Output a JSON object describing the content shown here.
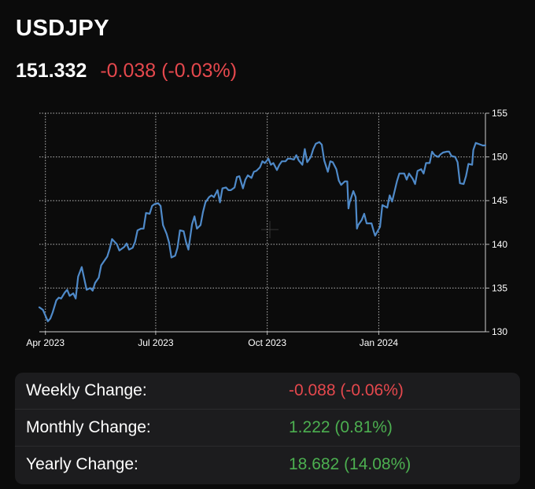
{
  "header": {
    "symbol": "USDJPY",
    "price": "151.332",
    "change": "-0.038 (-0.03%)"
  },
  "colors": {
    "background": "#0b0b0b",
    "line": "#4f8ac9",
    "negative": "#e5484d",
    "positive": "#4caf50",
    "panel": "#1c1c1e"
  },
  "chart_data": {
    "type": "line",
    "title": "",
    "xlabel": "",
    "ylabel": "",
    "ylim": [
      130,
      155
    ],
    "yticks": [
      130,
      135,
      140,
      145,
      150,
      155
    ],
    "xlim": [
      "2023-03-27",
      "2024-03-29"
    ],
    "xticks": [
      {
        "date": "2023-04-01",
        "label": "Apr 2023"
      },
      {
        "date": "2023-07-01",
        "label": "Jul 2023"
      },
      {
        "date": "2023-10-01",
        "label": "Oct 2023"
      },
      {
        "date": "2024-01-01",
        "label": "Jan 2024"
      }
    ],
    "grid": true,
    "y_axis_position": "right",
    "series": [
      {
        "name": "",
        "points": [
          [
            "2023-03-27",
            132.8
          ],
          [
            "2023-03-30",
            132.5
          ],
          [
            "2023-04-03",
            131.2
          ],
          [
            "2023-04-05",
            131.5
          ],
          [
            "2023-04-07",
            132.2
          ],
          [
            "2023-04-10",
            133.6
          ],
          [
            "2023-04-12",
            133.9
          ],
          [
            "2023-04-14",
            133.8
          ],
          [
            "2023-04-17",
            134.5
          ],
          [
            "2023-04-19",
            134.8
          ],
          [
            "2023-04-21",
            134.1
          ],
          [
            "2023-04-24",
            134.4
          ],
          [
            "2023-04-26",
            133.8
          ],
          [
            "2023-04-28",
            136.3
          ],
          [
            "2023-05-01",
            137.4
          ],
          [
            "2023-05-03",
            136.1
          ],
          [
            "2023-05-05",
            134.8
          ],
          [
            "2023-05-08",
            135.0
          ],
          [
            "2023-05-10",
            134.7
          ],
          [
            "2023-05-12",
            135.6
          ],
          [
            "2023-05-15",
            136.2
          ],
          [
            "2023-05-17",
            137.6
          ],
          [
            "2023-05-19",
            138.0
          ],
          [
            "2023-05-22",
            138.6
          ],
          [
            "2023-05-24",
            139.5
          ],
          [
            "2023-05-26",
            140.6
          ],
          [
            "2023-05-30",
            140.0
          ],
          [
            "2023-06-01",
            139.3
          ],
          [
            "2023-06-05",
            139.7
          ],
          [
            "2023-06-07",
            140.1
          ],
          [
            "2023-06-09",
            139.4
          ],
          [
            "2023-06-12",
            139.6
          ],
          [
            "2023-06-14",
            140.3
          ],
          [
            "2023-06-16",
            141.6
          ],
          [
            "2023-06-19",
            141.8
          ],
          [
            "2023-06-21",
            141.8
          ],
          [
            "2023-06-23",
            143.6
          ],
          [
            "2023-06-26",
            143.5
          ],
          [
            "2023-06-28",
            144.4
          ],
          [
            "2023-06-30",
            144.6
          ],
          [
            "2023-07-03",
            144.7
          ],
          [
            "2023-07-05",
            144.4
          ],
          [
            "2023-07-07",
            142.2
          ],
          [
            "2023-07-10",
            141.2
          ],
          [
            "2023-07-12",
            140.2
          ],
          [
            "2023-07-14",
            138.5
          ],
          [
            "2023-07-17",
            138.7
          ],
          [
            "2023-07-19",
            139.6
          ],
          [
            "2023-07-21",
            141.6
          ],
          [
            "2023-07-24",
            141.5
          ],
          [
            "2023-07-26",
            140.3
          ],
          [
            "2023-07-28",
            139.4
          ],
          [
            "2023-07-31",
            142.3
          ],
          [
            "2023-08-02",
            143.2
          ],
          [
            "2023-08-04",
            141.8
          ],
          [
            "2023-08-07",
            142.2
          ],
          [
            "2023-08-09",
            143.7
          ],
          [
            "2023-08-11",
            144.8
          ],
          [
            "2023-08-14",
            145.4
          ],
          [
            "2023-08-16",
            145.6
          ],
          [
            "2023-08-18",
            145.4
          ],
          [
            "2023-08-21",
            146.2
          ],
          [
            "2023-08-23",
            144.8
          ],
          [
            "2023-08-25",
            146.4
          ],
          [
            "2023-08-28",
            146.5
          ],
          [
            "2023-08-30",
            146.2
          ],
          [
            "2023-09-01",
            146.2
          ],
          [
            "2023-09-04",
            146.5
          ],
          [
            "2023-09-06",
            147.7
          ],
          [
            "2023-09-08",
            147.8
          ],
          [
            "2023-09-11",
            146.4
          ],
          [
            "2023-09-13",
            147.4
          ],
          [
            "2023-09-15",
            147.9
          ],
          [
            "2023-09-18",
            147.6
          ],
          [
            "2023-09-20",
            148.3
          ],
          [
            "2023-09-22",
            148.4
          ],
          [
            "2023-09-25",
            148.8
          ],
          [
            "2023-09-27",
            149.5
          ],
          [
            "2023-09-29",
            149.3
          ],
          [
            "2023-10-02",
            149.8
          ],
          [
            "2023-10-04",
            149.1
          ],
          [
            "2023-10-06",
            149.3
          ],
          [
            "2023-10-09",
            148.5
          ],
          [
            "2023-10-11",
            149.1
          ],
          [
            "2023-10-13",
            149.5
          ],
          [
            "2023-10-16",
            149.5
          ],
          [
            "2023-10-18",
            149.8
          ],
          [
            "2023-10-20",
            149.8
          ],
          [
            "2023-10-23",
            149.7
          ],
          [
            "2023-10-25",
            150.2
          ],
          [
            "2023-10-27",
            149.6
          ],
          [
            "2023-10-30",
            149.1
          ],
          [
            "2023-11-01",
            150.9
          ],
          [
            "2023-11-03",
            149.4
          ],
          [
            "2023-11-06",
            150.0
          ],
          [
            "2023-11-08",
            150.9
          ],
          [
            "2023-11-10",
            151.5
          ],
          [
            "2023-11-13",
            151.7
          ],
          [
            "2023-11-15",
            151.4
          ],
          [
            "2023-11-17",
            149.6
          ],
          [
            "2023-11-20",
            148.3
          ],
          [
            "2023-11-22",
            149.5
          ],
          [
            "2023-11-24",
            149.4
          ],
          [
            "2023-11-27",
            148.6
          ],
          [
            "2023-11-29",
            147.3
          ],
          [
            "2023-12-01",
            146.8
          ],
          [
            "2023-12-04",
            147.2
          ],
          [
            "2023-12-06",
            147.2
          ],
          [
            "2023-12-07",
            144.1
          ],
          [
            "2023-12-08",
            144.8
          ],
          [
            "2023-12-11",
            146.1
          ],
          [
            "2023-12-13",
            145.4
          ],
          [
            "2023-12-14",
            141.8
          ],
          [
            "2023-12-15",
            142.2
          ],
          [
            "2023-12-18",
            142.8
          ],
          [
            "2023-12-20",
            143.5
          ],
          [
            "2023-12-22",
            142.4
          ],
          [
            "2023-12-26",
            142.4
          ],
          [
            "2023-12-28",
            141.4
          ],
          [
            "2023-12-29",
            141.0
          ],
          [
            "2024-01-02",
            142.0
          ],
          [
            "2024-01-04",
            144.5
          ],
          [
            "2024-01-08",
            144.2
          ],
          [
            "2024-01-10",
            145.6
          ],
          [
            "2024-01-12",
            144.9
          ],
          [
            "2024-01-16",
            147.2
          ],
          [
            "2024-01-18",
            148.1
          ],
          [
            "2024-01-22",
            148.1
          ],
          [
            "2024-01-24",
            147.4
          ],
          [
            "2024-01-26",
            148.1
          ],
          [
            "2024-01-29",
            147.5
          ],
          [
            "2024-01-31",
            146.9
          ],
          [
            "2024-02-02",
            148.4
          ],
          [
            "2024-02-05",
            148.6
          ],
          [
            "2024-02-07",
            148.1
          ],
          [
            "2024-02-09",
            149.3
          ],
          [
            "2024-02-12",
            149.3
          ],
          [
            "2024-02-14",
            150.6
          ],
          [
            "2024-02-16",
            150.2
          ],
          [
            "2024-02-19",
            150.0
          ],
          [
            "2024-02-21",
            150.3
          ],
          [
            "2024-02-23",
            150.5
          ],
          [
            "2024-02-26",
            150.6
          ],
          [
            "2024-02-28",
            150.6
          ],
          [
            "2024-03-01",
            150.1
          ],
          [
            "2024-03-04",
            150.0
          ],
          [
            "2024-03-06",
            149.4
          ],
          [
            "2024-03-08",
            147.0
          ],
          [
            "2024-03-11",
            146.9
          ],
          [
            "2024-03-13",
            147.8
          ],
          [
            "2024-03-15",
            149.2
          ],
          [
            "2024-03-18",
            149.1
          ],
          [
            "2024-03-19",
            150.8
          ],
          [
            "2024-03-21",
            151.6
          ],
          [
            "2024-03-25",
            151.4
          ],
          [
            "2024-03-27",
            151.3
          ],
          [
            "2024-03-29",
            151.33
          ]
        ]
      }
    ]
  },
  "stats": [
    {
      "label": "Weekly Change:",
      "value": "-0.088 (-0.06%)",
      "direction": "negative"
    },
    {
      "label": "Monthly Change:",
      "value": "1.222 (0.81%)",
      "direction": "positive"
    },
    {
      "label": "Yearly Change:",
      "value": "18.682 (14.08%)",
      "direction": "positive"
    }
  ]
}
